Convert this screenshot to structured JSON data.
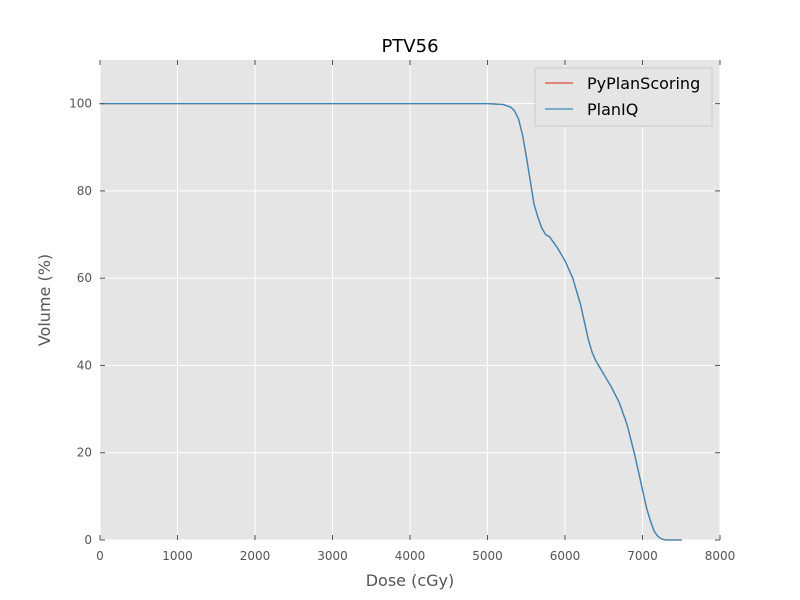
{
  "chart_data": {
    "type": "line",
    "title": "PTV56",
    "xlabel": "Dose (cGy)",
    "ylabel": "Volume (%)",
    "xlim": [
      0,
      8000
    ],
    "ylim": [
      0,
      110
    ],
    "xticks": [
      0,
      1000,
      2000,
      3000,
      4000,
      5000,
      6000,
      7000,
      8000
    ],
    "yticks": [
      0,
      20,
      40,
      60,
      80,
      100
    ],
    "grid": true,
    "legend_position": "top-right",
    "background_color": "#e5e5e5",
    "series": [
      {
        "name": "PyPlanScoring",
        "color": "#e24a33",
        "x": [
          0,
          1000,
          2000,
          3000,
          4000,
          5000,
          5100,
          5200,
          5300,
          5350,
          5400,
          5450,
          5500,
          5550,
          5600,
          5650,
          5700,
          5750,
          5800,
          5900,
          6000,
          6100,
          6200,
          6250,
          6300,
          6350,
          6400,
          6450,
          6500,
          6600,
          6700,
          6800,
          6900,
          7000,
          7050,
          7100,
          7150,
          7200,
          7250,
          7300,
          7350,
          7400,
          7500
        ],
        "y": [
          100,
          100,
          100,
          100,
          100,
          100,
          99.9,
          99.8,
          99.2,
          98.3,
          96.5,
          93,
          88,
          82.5,
          77,
          74,
          71.5,
          70,
          69.5,
          67,
          64,
          60,
          54,
          50,
          46,
          43,
          41,
          39.5,
          38,
          35,
          31.5,
          26.5,
          19.5,
          11.5,
          7.5,
          4.5,
          2,
          0.8,
          0.2,
          0,
          0,
          0,
          0
        ]
      },
      {
        "name": "PlanIQ",
        "color": "#348abd",
        "x": [
          0,
          1000,
          2000,
          3000,
          4000,
          5000,
          5100,
          5200,
          5300,
          5350,
          5400,
          5450,
          5500,
          5550,
          5600,
          5650,
          5700,
          5750,
          5800,
          5900,
          6000,
          6100,
          6200,
          6250,
          6300,
          6350,
          6400,
          6450,
          6500,
          6600,
          6700,
          6800,
          6900,
          7000,
          7050,
          7100,
          7150,
          7200,
          7250,
          7300,
          7350,
          7400,
          7500
        ],
        "y": [
          100,
          100,
          100,
          100,
          100,
          100,
          99.9,
          99.8,
          99.2,
          98.3,
          96.5,
          93,
          88,
          82.5,
          77,
          74,
          71.5,
          70,
          69.5,
          67,
          64,
          60,
          54,
          50,
          46,
          43,
          41,
          39.5,
          38,
          35,
          31.5,
          26.5,
          19.5,
          11.5,
          7.5,
          4.5,
          2,
          0.8,
          0.2,
          0,
          0,
          0,
          0
        ]
      }
    ]
  }
}
